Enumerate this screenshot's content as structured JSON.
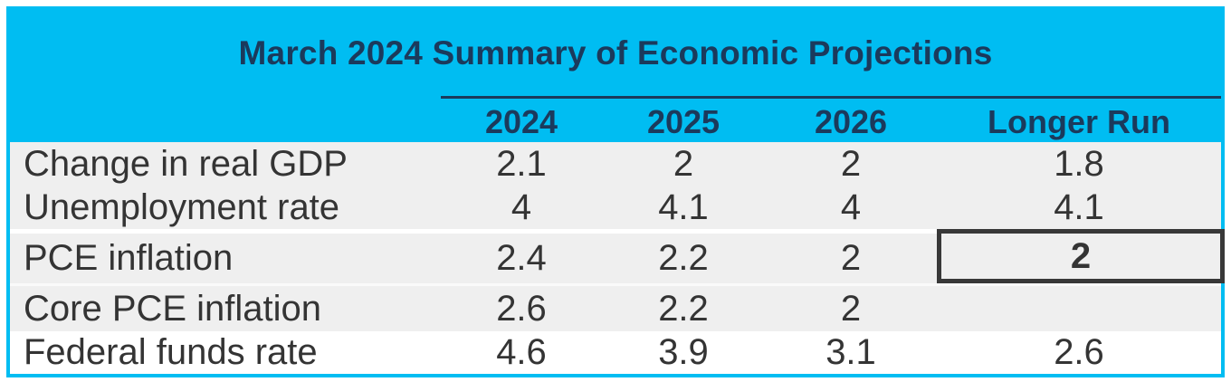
{
  "title": "March 2024 Summary of Economic Projections",
  "columns": [
    "2024",
    "2025",
    "2026",
    "Longer Run"
  ],
  "rows": [
    {
      "label": "Change in real GDP",
      "values": [
        "2.1",
        "2",
        "2",
        "1.8"
      ]
    },
    {
      "label": "Unemployment rate",
      "values": [
        "4",
        "4.1",
        "4",
        "4.1"
      ]
    },
    {
      "label": "PCE inflation",
      "values": [
        "2.4",
        "2.2",
        "2",
        "2"
      ],
      "highlighted_column": "Longer Run"
    },
    {
      "label": "Core PCE inflation",
      "values": [
        "2.6",
        "2.2",
        "2",
        ""
      ]
    },
    {
      "label": "Federal funds rate",
      "values": [
        "4.6",
        "3.9",
        "3.1",
        "2.6"
      ]
    }
  ],
  "colors": {
    "header_cyan": "#00BDF2",
    "title_navy": "#1B3A5C",
    "row_gray": "#EFEFEF",
    "body_text": "#343434",
    "highlight_box_border": "#383838"
  },
  "chart_data": {
    "type": "table",
    "title": "March 2024 Summary of Economic Projections",
    "columns": [
      "",
      "2024",
      "2025",
      "2026",
      "Longer Run"
    ],
    "rows": [
      [
        "Change in real GDP",
        2.1,
        2,
        2,
        1.8
      ],
      [
        "Unemployment rate",
        4,
        4.1,
        4,
        4.1
      ],
      [
        "PCE inflation",
        2.4,
        2.2,
        2,
        2
      ],
      [
        "Core PCE inflation",
        2.6,
        2.2,
        2,
        null
      ],
      [
        "Federal funds rate",
        4.6,
        3.9,
        3.1,
        2.6
      ]
    ],
    "annotations": [
      "PCE inflation 'Longer Run' value (2) is emphasized with a dark outlined box and bold text"
    ]
  }
}
